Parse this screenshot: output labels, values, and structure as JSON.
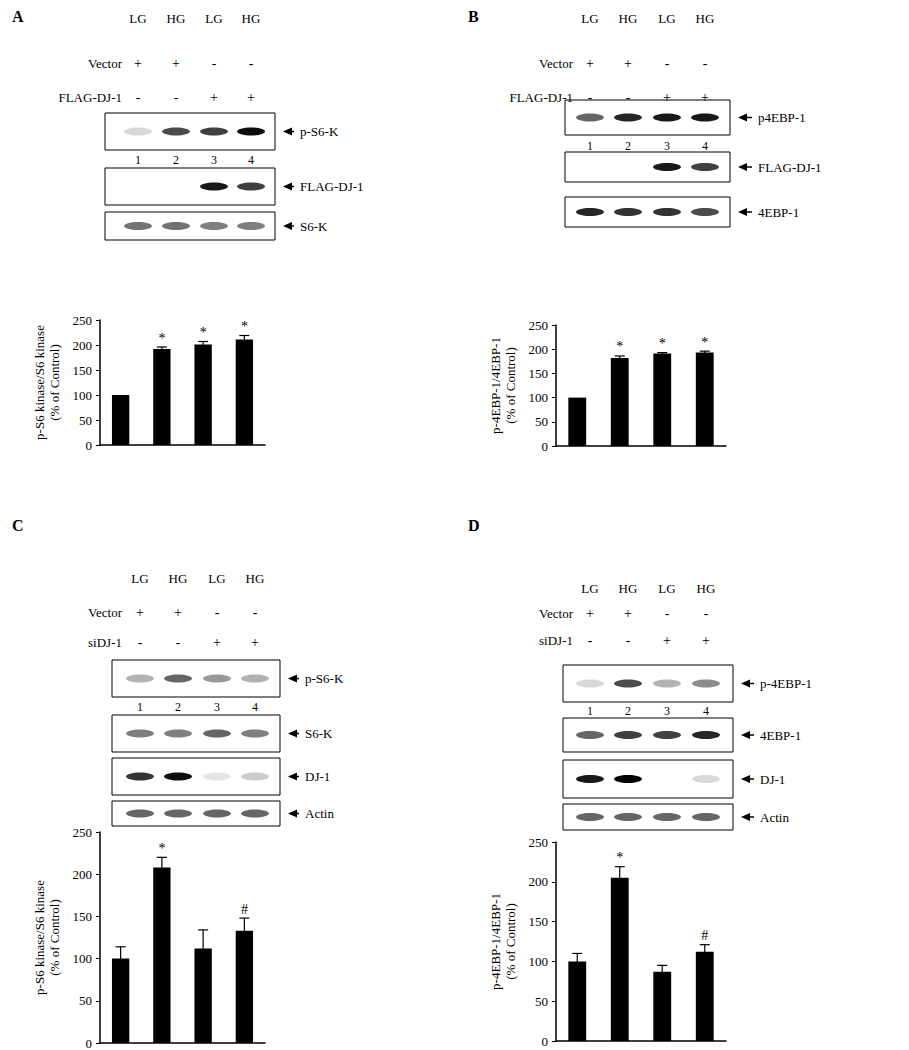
{
  "figure": {
    "panels": [
      {
        "label": "A",
        "lanes": [
          "LG",
          "HG",
          "LG",
          "HG"
        ],
        "treatments": [
          {
            "name": "Vector",
            "marks": [
              "+",
              "+",
              "-",
              "-"
            ]
          },
          {
            "name": "FLAG-DJ-1",
            "marks": [
              "-",
              "-",
              "+",
              "+"
            ]
          }
        ],
        "lane_numbers": [
          1,
          2,
          3,
          4
        ],
        "blots": [
          {
            "name": "p-S6-K",
            "bands": [
              0.15,
              0.7,
              0.75,
              0.95
            ]
          },
          {
            "name": "FLAG-DJ-1",
            "bands": [
              0,
              0,
              0.9,
              0.75
            ]
          },
          {
            "name": "S6-K",
            "bands": [
              0.55,
              0.55,
              0.5,
              0.5
            ]
          }
        ]
      },
      {
        "label": "B",
        "lanes": [
          "LG",
          "HG",
          "LG",
          "HG"
        ],
        "treatments": [
          {
            "name": "Vector",
            "marks": [
              "+",
              "+",
              "-",
              "-"
            ]
          },
          {
            "name": "FLAG-DJ-1",
            "marks": [
              "-",
              "-",
              "+",
              "+"
            ]
          }
        ],
        "lane_numbers": [
          1,
          2,
          3,
          4
        ],
        "blots": [
          {
            "name": "p4EBP-1",
            "bands": [
              0.6,
              0.85,
              0.9,
              0.9
            ]
          },
          {
            "name": "FLAG-DJ-1",
            "bands": [
              0,
              0,
              0.9,
              0.75
            ]
          },
          {
            "name": "4EBP-1",
            "bands": [
              0.85,
              0.8,
              0.8,
              0.7
            ]
          }
        ]
      },
      {
        "label": "C",
        "lanes": [
          "LG",
          "HG",
          "LG",
          "HG"
        ],
        "treatments": [
          {
            "name": "Vector",
            "marks": [
              "+",
              "+",
              "-",
              "-"
            ]
          },
          {
            "name": "siDJ-1",
            "marks": [
              "-",
              "-",
              "+",
              "+"
            ]
          }
        ],
        "lane_numbers": [
          1,
          2,
          3,
          4
        ],
        "blots": [
          {
            "name": "p-S6-K",
            "bands": [
              0.3,
              0.6,
              0.4,
              0.3
            ]
          },
          {
            "name": "S6-K",
            "bands": [
              0.5,
              0.5,
              0.6,
              0.5
            ]
          },
          {
            "name": "DJ-1",
            "bands": [
              0.8,
              0.95,
              0.1,
              0.2
            ]
          },
          {
            "name": "Actin",
            "bands": [
              0.6,
              0.6,
              0.6,
              0.6
            ]
          }
        ]
      },
      {
        "label": "D",
        "lanes": [
          "LG",
          "HG",
          "LG",
          "HG"
        ],
        "treatments": [
          {
            "name": "Vector",
            "marks": [
              "+",
              "+",
              "-",
              "-"
            ]
          },
          {
            "name": "siDJ-1",
            "marks": [
              "-",
              "-",
              "+",
              "+"
            ]
          }
        ],
        "lane_numbers": [
          1,
          2,
          3,
          4
        ],
        "blots": [
          {
            "name": "p-4EBP-1",
            "bands": [
              0.15,
              0.7,
              0.3,
              0.45
            ]
          },
          {
            "name": "4EBP-1",
            "bands": [
              0.6,
              0.75,
              0.75,
              0.85
            ]
          },
          {
            "name": "DJ-1",
            "bands": [
              0.9,
              1,
              0,
              0.15
            ]
          },
          {
            "name": "Actin",
            "bands": [
              0.6,
              0.6,
              0.6,
              0.6
            ]
          }
        ]
      }
    ]
  },
  "chart_data": [
    {
      "type": "bar",
      "ylabel": "p-S6 kinase/S6 kinase\n(% of Control)",
      "categories": [
        null,
        null,
        null,
        null
      ],
      "values": [
        100,
        192,
        201,
        211
      ],
      "errors": [
        0,
        4,
        6,
        8
      ],
      "annotations": [
        null,
        "*",
        "*",
        "*"
      ],
      "color": "#000000",
      "ylim": [
        0,
        250
      ],
      "yticks": [
        0,
        50,
        100,
        150,
        200,
        250
      ],
      "grid": false,
      "tick_labels": "y"
    },
    {
      "type": "bar",
      "ylabel": "p-4EBP-1/4EBP-1\n(% of Control)",
      "categories": [
        null,
        null,
        null,
        null
      ],
      "values": [
        100,
        182,
        191,
        193
      ],
      "errors": [
        0,
        4,
        2,
        3
      ],
      "annotations": [
        null,
        "*",
        "*",
        "*"
      ],
      "color": "#000000",
      "ylim": [
        0,
        250
      ],
      "yticks": [
        0,
        50,
        100,
        150,
        200,
        250
      ],
      "grid": false,
      "tick_labels": "y"
    },
    {
      "type": "bar",
      "ylabel": "p-S6 kinase/S6 kinase\n(% of Control)",
      "categories": [
        null,
        null,
        null,
        null
      ],
      "values": [
        100,
        208,
        112,
        133
      ],
      "errors": [
        14,
        12,
        22,
        15
      ],
      "annotations": [
        null,
        "*",
        null,
        "#"
      ],
      "color": "#000000",
      "ylim": [
        0,
        250
      ],
      "yticks": [
        0,
        50,
        100,
        150,
        200,
        250
      ],
      "grid": false,
      "tick_labels": "y"
    },
    {
      "type": "bar",
      "ylabel": "p-4EBP-1/4EBP-1\n(% of Control)",
      "categories": [
        null,
        null,
        null,
        null
      ],
      "values": [
        100,
        205,
        87,
        112
      ],
      "errors": [
        10,
        14,
        8,
        9
      ],
      "annotations": [
        null,
        "*",
        null,
        "#"
      ],
      "color": "#000000",
      "ylim": [
        0,
        250
      ],
      "yticks": [
        0,
        50,
        100,
        150,
        200,
        250
      ],
      "grid": false,
      "tick_labels": "y"
    }
  ]
}
